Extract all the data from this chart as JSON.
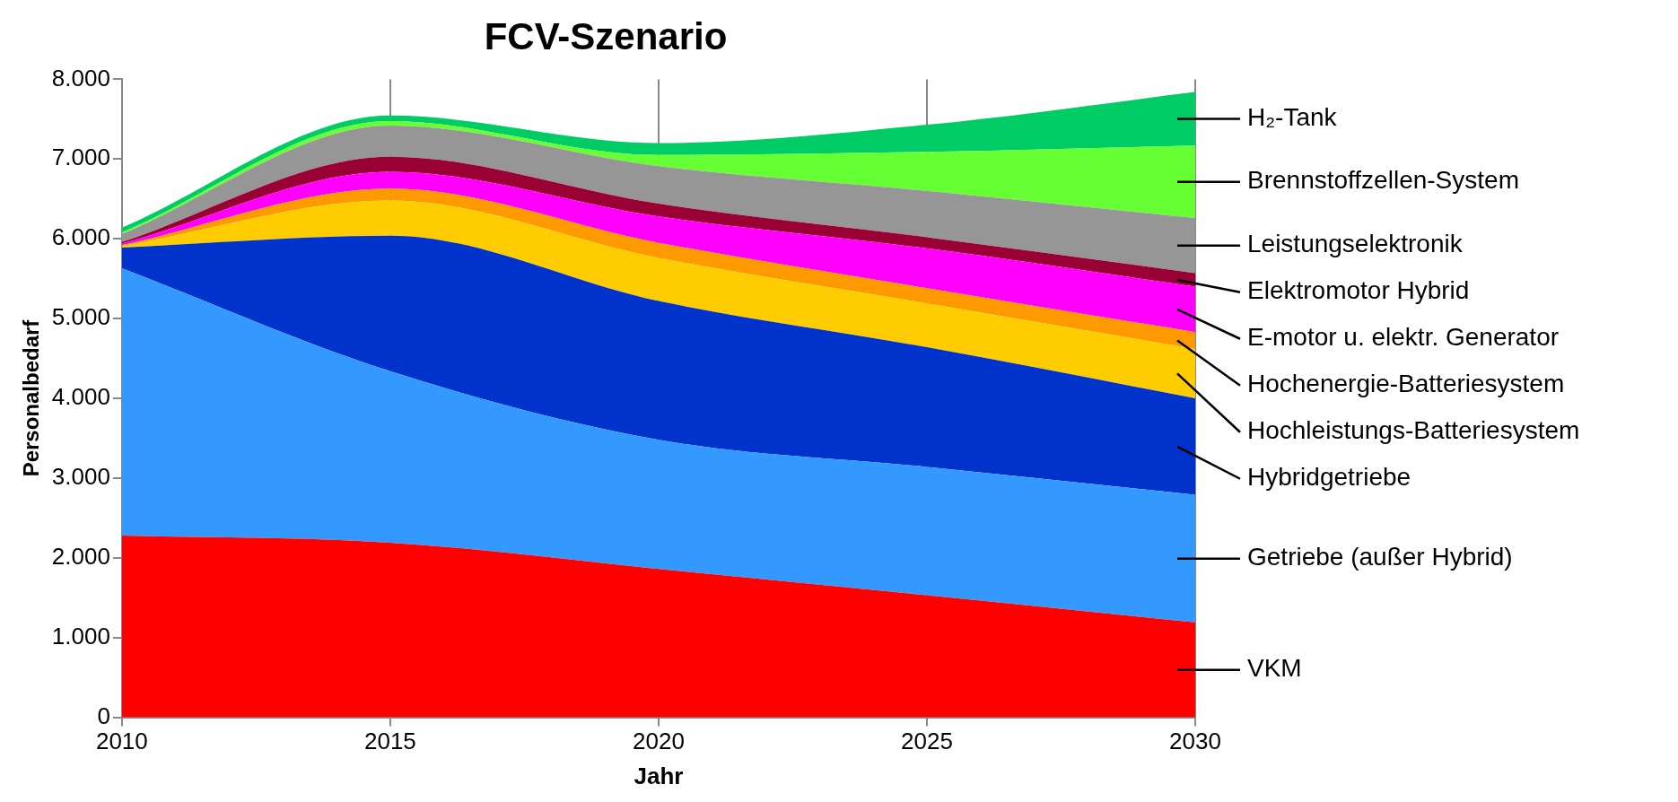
{
  "chart_data": {
    "type": "area",
    "stacked": true,
    "title": "FCV-Szenario",
    "xlabel": "Jahr",
    "ylabel": "Personalbedarf",
    "x": [
      2010,
      2015,
      2020,
      2025,
      2030
    ],
    "xlim": [
      2010,
      2030
    ],
    "xticks": [
      2010,
      2015,
      2020,
      2025,
      2030
    ],
    "ylim": [
      0,
      8000
    ],
    "yticks": [
      {
        "value": 0,
        "label": "0"
      },
      {
        "value": 1000,
        "label": "1.000"
      },
      {
        "value": 2000,
        "label": "2.000"
      },
      {
        "value": 3000,
        "label": "3.000"
      },
      {
        "value": 4000,
        "label": "4.000"
      },
      {
        "value": 5000,
        "label": "5.000"
      },
      {
        "value": 6000,
        "label": "6.000"
      },
      {
        "value": 7000,
        "label": "7.000"
      },
      {
        "value": 8000,
        "label": "8.000"
      }
    ],
    "grid": "x",
    "legend": false,
    "series": [
      {
        "name": "VKM",
        "color": "#ff0000",
        "values": [
          2280,
          2190,
          1860,
          1530,
          1190
        ]
      },
      {
        "name": "Getriebe (außer Hybrid)",
        "color": "#3399ff",
        "values": [
          3350,
          2150,
          1620,
          1610,
          1600
        ]
      },
      {
        "name": "Hybridgetriebe",
        "color": "#0033cc",
        "values": [
          260,
          1700,
          1740,
          1500,
          1210
        ]
      },
      {
        "name": "Hochleistungs-Batteriesystem",
        "color": "#ffcc00",
        "values": [
          20,
          440,
          540,
          550,
          620
        ]
      },
      {
        "name": "Hochenergie-Batteriesystem",
        "color": "#ff9900",
        "values": [
          10,
          150,
          190,
          190,
          210
        ]
      },
      {
        "name": "E-motor u. elektr. Generator",
        "color": "#ff00ff",
        "values": [
          20,
          210,
          330,
          500,
          570
        ]
      },
      {
        "name": "Elektromotor Hybrid",
        "color": "#990033",
        "values": [
          20,
          190,
          160,
          140,
          170
        ]
      },
      {
        "name": "Leistungselektronik",
        "color": "#969696",
        "values": [
          100,
          390,
          470,
          580,
          690
        ]
      },
      {
        "name": "Brennstoffzellen-System",
        "color": "#66ff33",
        "values": [
          20,
          55,
          140,
          490,
          910
        ]
      },
      {
        "name": "H₂-Tank",
        "color": "#00cc66",
        "values": [
          60,
          70,
          150,
          340,
          670
        ]
      }
    ]
  }
}
